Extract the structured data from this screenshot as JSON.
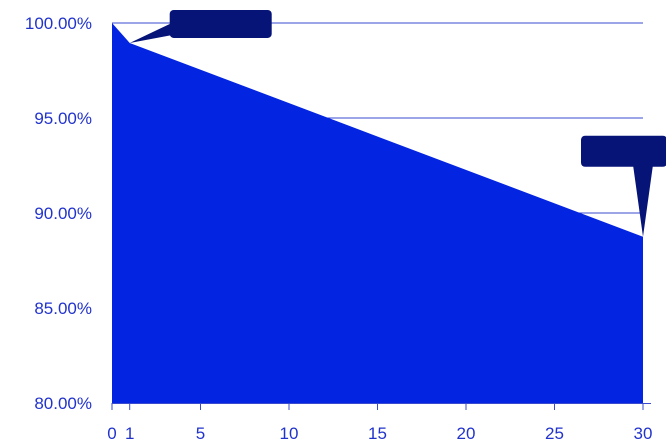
{
  "chart_data": {
    "type": "area",
    "title": "",
    "xlabel": "",
    "ylabel": "",
    "x": [
      0,
      1,
      30
    ],
    "values": [
      100.0,
      98.95,
      88.75
    ],
    "xlim": [
      0,
      30
    ],
    "ylim": [
      80,
      100
    ],
    "x_ticks": [
      0,
      1,
      5,
      10,
      15,
      20,
      25,
      30
    ],
    "x_tick_labels": [
      "0",
      "1",
      "5",
      "10",
      "15",
      "20",
      "25",
      "30"
    ],
    "y_ticks": [
      80,
      85,
      90,
      95,
      100
    ],
    "y_tick_labels": [
      "80.00%",
      "85.00%",
      "90.00%",
      "95.00%",
      "100.00%"
    ],
    "grid": "horizontal",
    "colors": {
      "area": "#0324e0",
      "grid": "#3a4bd0",
      "tick_text": "#2233cc",
      "callout": "#061478"
    },
    "callouts": [
      {
        "x": 1,
        "y": 98.95,
        "text": ""
      },
      {
        "x": 30,
        "y": 88.75,
        "text": ""
      }
    ]
  }
}
